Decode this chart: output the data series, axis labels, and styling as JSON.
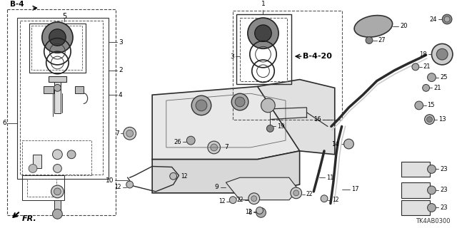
{
  "bg_color": "#ffffff",
  "line_color": "#2a2a2a",
  "fig_width": 6.4,
  "fig_height": 3.2,
  "dpi": 100,
  "diagram_code": "TK4AB0300",
  "b4_label": "B-4",
  "b420_label": "B-4-20",
  "fr_label": "FR."
}
